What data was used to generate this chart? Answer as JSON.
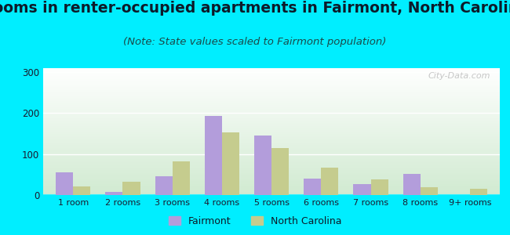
{
  "title": "Rooms in renter-occupied apartments in Fairmont, North Carolina",
  "subtitle": "(Note: State values scaled to Fairmont population)",
  "categories": [
    "1 room",
    "2 rooms",
    "3 rooms",
    "4 rooms",
    "5 rooms",
    "6 rooms",
    "7 rooms",
    "8 rooms",
    "9+ rooms"
  ],
  "fairmont": [
    55,
    8,
    45,
    193,
    145,
    40,
    27,
    52,
    0
  ],
  "nc": [
    22,
    32,
    83,
    153,
    115,
    67,
    38,
    20,
    15
  ],
  "fairmont_color": "#b39ddb",
  "nc_color": "#c5cc8e",
  "background_outer": "#00eeff",
  "ylim": [
    0,
    310
  ],
  "yticks": [
    0,
    100,
    200,
    300
  ],
  "bar_width": 0.35,
  "title_fontsize": 13.5,
  "subtitle_fontsize": 9.5,
  "watermark": "City-Data.com"
}
